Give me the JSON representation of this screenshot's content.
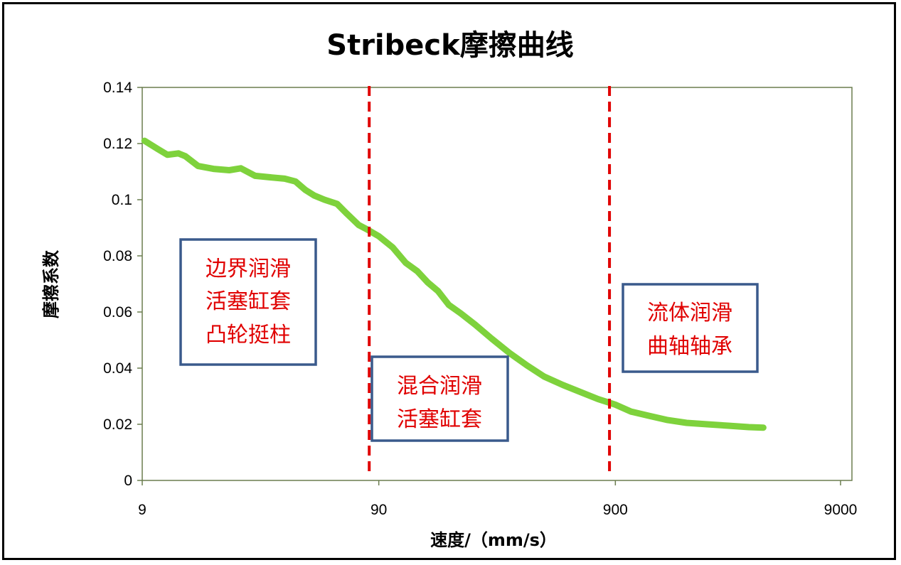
{
  "chart_data": {
    "type": "line",
    "title": "Stribeck摩擦曲线",
    "xlabel": "速度/（mm/s）",
    "ylabel": "摩擦系数",
    "x_scale": "log",
    "xlim": [
      9,
      9000
    ],
    "ylim": [
      0,
      0.14
    ],
    "x_ticks": [
      9,
      90,
      900,
      9000
    ],
    "x_tick_labels": [
      "9",
      "90",
      "900",
      "9000"
    ],
    "y_ticks": [
      0,
      0.02,
      0.04,
      0.06,
      0.08,
      0.1,
      0.12,
      0.14
    ],
    "y_tick_labels": [
      "0",
      "0.02",
      "0.04",
      "0.06",
      "0.08",
      "0.1",
      "0.12",
      "0.14"
    ],
    "grid": false,
    "legend": "none",
    "series": [
      {
        "color": "#7ed23c",
        "x": [
          9.2,
          10.5,
          11.5,
          12.8,
          13.7,
          15.5,
          18.0,
          21.0,
          23.5,
          27.0,
          31.0,
          36.0,
          40.0,
          44.0,
          48.0,
          53.0,
          60.0,
          66.0,
          74.0,
          80.0,
          90.0,
          103.0,
          117.0,
          131.0,
          145.0,
          160.0,
          178.0,
          200.0,
          230.0,
          270.0,
          320.0,
          380.0,
          450.0,
          540.0,
          640.0,
          760.0,
          900.0,
          1050.0,
          1250.0,
          1500.0,
          1800.0,
          2200.0,
          2700.0,
          3300.0,
          3800.0
        ],
        "y": [
          0.121,
          0.118,
          0.116,
          0.1165,
          0.1155,
          0.112,
          0.111,
          0.1105,
          0.1112,
          0.1085,
          0.108,
          0.1075,
          0.1065,
          0.1035,
          0.1015,
          0.1,
          0.0985,
          0.095,
          0.091,
          0.0895,
          0.087,
          0.083,
          0.0775,
          0.0745,
          0.0705,
          0.0675,
          0.0625,
          0.0595,
          0.0555,
          0.0505,
          0.0455,
          0.041,
          0.037,
          0.034,
          0.0315,
          0.029,
          0.027,
          0.0245,
          0.023,
          0.0215,
          0.0205,
          0.02,
          0.0195,
          0.019,
          0.0188
        ]
      }
    ],
    "reference_lines": [
      {
        "axis": "x",
        "value": 82,
        "color": "#e00000",
        "style": "dashed"
      },
      {
        "axis": "x",
        "value": 850,
        "color": "#e00000",
        "style": "dashed"
      }
    ],
    "regions": [
      {
        "lines": [
          "边界润滑",
          "活塞缸套",
          "凸轮挺柱"
        ]
      },
      {
        "lines": [
          "混合润滑",
          "活塞缸套"
        ]
      },
      {
        "lines": [
          "流体润滑",
          "曲轴轴承"
        ]
      }
    ],
    "colors": {
      "plot_border": "#6b7d4f",
      "box_border": "#3a5a8c",
      "annotation_text": "#e00000",
      "curve": "#7ed23c"
    }
  }
}
